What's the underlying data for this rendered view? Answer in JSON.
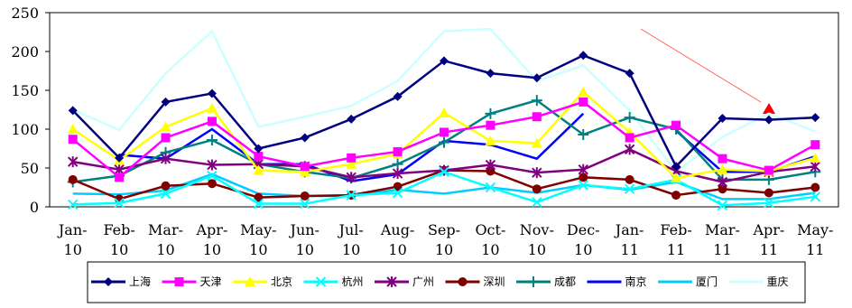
{
  "chart_data": {
    "type": "line",
    "categories": [
      "Jan-10",
      "Feb-10",
      "Mar-10",
      "Apr-10",
      "May-10",
      "Jun-10",
      "Jul-10",
      "Aug-10",
      "Sep-10",
      "Oct-10",
      "Nov-10",
      "Dec-10",
      "Jan-11",
      "Feb-11",
      "Mar-11",
      "Apr-11",
      "May-11"
    ],
    "ylim": [
      0,
      250
    ],
    "yticks": [
      0,
      50,
      100,
      150,
      200,
      250
    ],
    "grid": false,
    "series": [
      {
        "name": "上海",
        "color": "#000080",
        "marker": "diamond",
        "values": [
          124,
          63,
          135,
          146,
          75,
          89,
          113,
          142,
          188,
          172,
          166,
          195,
          172,
          52,
          114,
          112,
          115
        ]
      },
      {
        "name": "天津",
        "color": "#ff00ff",
        "marker": "square",
        "values": [
          87,
          38,
          89,
          110,
          65,
          52,
          63,
          71,
          96,
          105,
          116,
          135,
          89,
          105,
          62,
          47,
          80
        ]
      },
      {
        "name": "北京",
        "color": "#ffff00",
        "marker": "triangle",
        "values": [
          100,
          60,
          103,
          127,
          47,
          45,
          55,
          68,
          121,
          85,
          82,
          148,
          96,
          37,
          48,
          46,
          63
        ]
      },
      {
        "name": "杭州",
        "color": "#00ffff",
        "marker": "x",
        "values": [
          3,
          5,
          17,
          40,
          4,
          4,
          15,
          18,
          45,
          25,
          6,
          28,
          23,
          35,
          2,
          5,
          13
        ]
      },
      {
        "name": "广州",
        "color": "#800080",
        "marker": "star",
        "values": [
          58,
          48,
          62,
          54,
          55,
          52,
          38,
          43,
          47,
          54,
          44,
          48,
          74,
          46,
          32,
          45,
          52
        ]
      },
      {
        "name": "深圳",
        "color": "#800000",
        "marker": "circle",
        "values": [
          35,
          10,
          27,
          30,
          12,
          14,
          15,
          26,
          47,
          46,
          23,
          38,
          35,
          15,
          23,
          18,
          25
        ]
      },
      {
        "name": "成都",
        "color": "#008080",
        "marker": "plus",
        "values": [
          32,
          40,
          70,
          86,
          55,
          45,
          37,
          55,
          83,
          120,
          137,
          93,
          115,
          100,
          35,
          35,
          45
        ]
      },
      {
        "name": "南京",
        "color": "#0000ff",
        "marker": "none",
        "values": [
          null,
          67,
          62,
          100,
          55,
          55,
          33,
          42,
          85,
          80,
          62,
          120,
          null,
          98,
          45,
          45,
          65
        ]
      },
      {
        "name": "厦门",
        "color": "#00ccff",
        "marker": "none",
        "values": [
          17,
          16,
          21,
          42,
          17,
          14,
          14,
          22,
          17,
          25,
          18,
          28,
          22,
          32,
          10,
          10,
          18
        ]
      },
      {
        "name": "重庆",
        "color": "#ccffff",
        "marker": "none",
        "values": [
          125,
          99,
          172,
          226,
          103,
          116,
          130,
          162,
          226,
          229,
          162,
          182,
          124,
          45,
          90,
          120,
          97
        ]
      }
    ]
  }
}
